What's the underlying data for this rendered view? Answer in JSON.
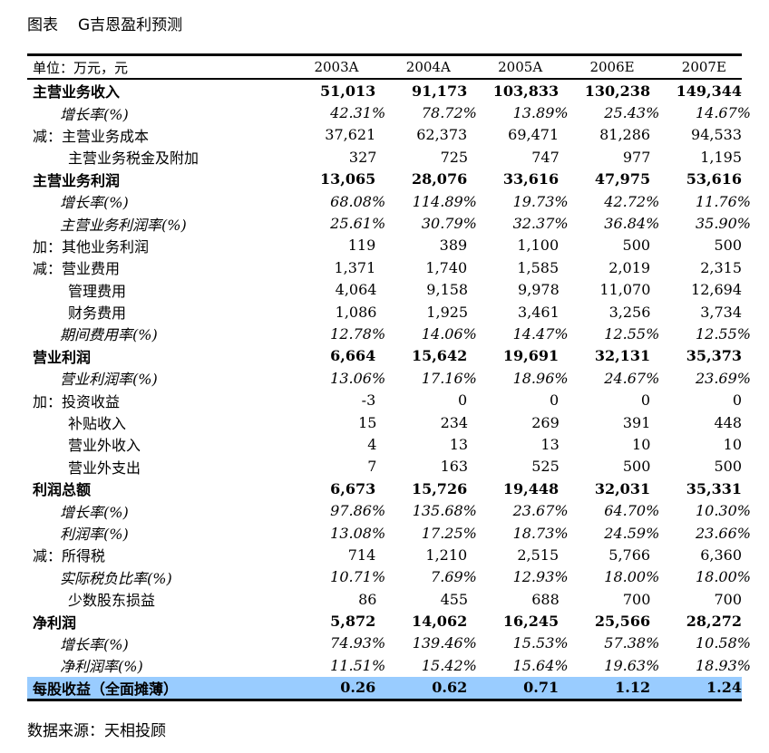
{
  "title": {
    "prefix": "图表",
    "text": "G吉恩盈利预测"
  },
  "table": {
    "unit_label": "单位：万元，元",
    "columns": [
      "2003A",
      "2004A",
      "2005A",
      "2006E",
      "2007E"
    ],
    "rows": [
      {
        "type": "bold",
        "label": "主营业务收入",
        "values": [
          "51,013",
          "91,173",
          "103,833",
          "130,238",
          "149,344"
        ]
      },
      {
        "type": "ital",
        "label": "增长率(%)",
        "values": [
          "42.31%",
          "78.72%",
          "13.89%",
          "25.43%",
          "14.67%"
        ]
      },
      {
        "type": "normal",
        "label": "减：主营业务成本",
        "values": [
          "37,621",
          "62,373",
          "69,471",
          "81,286",
          "94,533"
        ]
      },
      {
        "type": "sub",
        "label": "主营业务税金及附加",
        "values": [
          "327",
          "725",
          "747",
          "977",
          "1,195"
        ]
      },
      {
        "type": "bold",
        "label": "主营业务利润",
        "values": [
          "13,065",
          "28,076",
          "33,616",
          "47,975",
          "53,616"
        ]
      },
      {
        "type": "ital",
        "label": "增长率(%)",
        "values": [
          "68.08%",
          "114.89%",
          "19.73%",
          "42.72%",
          "11.76%"
        ]
      },
      {
        "type": "ital",
        "label": "主营业务利润率(%)",
        "values": [
          "25.61%",
          "30.79%",
          "32.37%",
          "36.84%",
          "35.90%"
        ]
      },
      {
        "type": "normal",
        "label": "加：其他业务利润",
        "values": [
          "119",
          "389",
          "1,100",
          "500",
          "500"
        ]
      },
      {
        "type": "normal",
        "label": "减：营业费用",
        "values": [
          "1,371",
          "1,740",
          "1,585",
          "2,019",
          "2,315"
        ]
      },
      {
        "type": "sub",
        "label": "管理费用",
        "values": [
          "4,064",
          "9,158",
          "9,978",
          "11,070",
          "12,694"
        ]
      },
      {
        "type": "sub",
        "label": "财务费用",
        "values": [
          "1,086",
          "1,925",
          "3,461",
          "3,256",
          "3,734"
        ]
      },
      {
        "type": "ital",
        "label": "期间费用率(%)",
        "values": [
          "12.78%",
          "14.06%",
          "14.47%",
          "12.55%",
          "12.55%"
        ]
      },
      {
        "type": "bold",
        "label": "营业利润",
        "values": [
          "6,664",
          "15,642",
          "19,691",
          "32,131",
          "35,373"
        ]
      },
      {
        "type": "ital",
        "label": "营业利润率(%)",
        "values": [
          "13.06%",
          "17.16%",
          "18.96%",
          "24.67%",
          "23.69%"
        ]
      },
      {
        "type": "normal",
        "label": "加：投资收益",
        "values": [
          "-3",
          "0",
          "0",
          "0",
          "0"
        ]
      },
      {
        "type": "sub",
        "label": "补贴收入",
        "values": [
          "15",
          "234",
          "269",
          "391",
          "448"
        ]
      },
      {
        "type": "sub",
        "label": "营业外收入",
        "values": [
          "4",
          "13",
          "13",
          "10",
          "10"
        ]
      },
      {
        "type": "sub",
        "label": "营业外支出",
        "values": [
          "7",
          "163",
          "525",
          "500",
          "500"
        ]
      },
      {
        "type": "bold",
        "label": "利润总额",
        "values": [
          "6,673",
          "15,726",
          "19,448",
          "32,031",
          "35,331"
        ]
      },
      {
        "type": "ital",
        "label": "增长率(%)",
        "values": [
          "97.86%",
          "135.68%",
          "23.67%",
          "64.70%",
          "10.30%"
        ]
      },
      {
        "type": "ital",
        "label": "利润率(%)",
        "values": [
          "13.08%",
          "17.25%",
          "18.73%",
          "24.59%",
          "23.66%"
        ]
      },
      {
        "type": "normal",
        "label": "减：所得税",
        "values": [
          "714",
          "1,210",
          "2,515",
          "5,766",
          "6,360"
        ]
      },
      {
        "type": "ital",
        "label": "实际税负比率(%)",
        "values": [
          "10.71%",
          "7.69%",
          "12.93%",
          "18.00%",
          "18.00%"
        ]
      },
      {
        "type": "sub",
        "label": "少数股东损益",
        "values": [
          "86",
          "455",
          "688",
          "700",
          "700"
        ]
      },
      {
        "type": "bold",
        "label": "净利润",
        "values": [
          "5,872",
          "14,062",
          "16,245",
          "25,566",
          "28,272"
        ]
      },
      {
        "type": "ital",
        "label": "增长率(%)",
        "values": [
          "74.93%",
          "139.46%",
          "15.53%",
          "57.38%",
          "10.58%"
        ]
      },
      {
        "type": "ital",
        "label": "净利润率(%)",
        "values": [
          "11.51%",
          "15.42%",
          "15.64%",
          "19.63%",
          "18.93%"
        ]
      },
      {
        "type": "eps",
        "label": "每股收益（全面摊薄）",
        "values": [
          "0.26",
          "0.62",
          "0.71",
          "1.12",
          "1.24"
        ]
      }
    ],
    "highlight_color": "#99ccff"
  },
  "source": "数据来源：天相投顾"
}
